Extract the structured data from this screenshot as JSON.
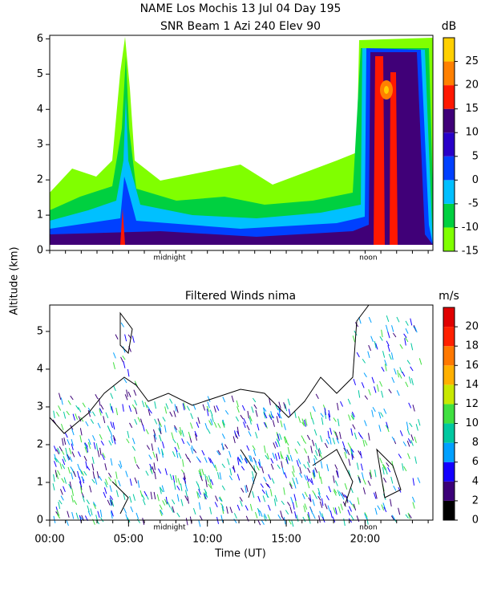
{
  "chart_data": [
    {
      "type": "contour",
      "title": "NAME Los Mochis   13 Jul 04 Day 195",
      "subtitle": "SNR Beam 1 Azi 240 Elev 90",
      "xlim": [
        0,
        24.3
      ],
      "ylim": [
        0,
        6.1
      ],
      "yticks": [
        0,
        1,
        2,
        3,
        4,
        5,
        6
      ],
      "annotations": [
        {
          "text": "midnight",
          "x": 7.6
        },
        {
          "text": "noon",
          "x": 20.2
        }
      ],
      "colorbar": {
        "label": "dB",
        "levels": [
          -15,
          -10,
          -5,
          0,
          5,
          10,
          15,
          20,
          25,
          30
        ],
        "colors": [
          "#80ff00",
          "#00d040",
          "#00c0ff",
          "#0040ff",
          "#2800c8",
          "#400078",
          "#ff1800",
          "#ff8000",
          "#ffd000"
        ],
        "ticks": [
          -15,
          -10,
          -5,
          0,
          5,
          10,
          15,
          20,
          25
        ]
      }
    },
    {
      "type": "barbs",
      "title": "Filtered Winds nima",
      "y_label": "Altitude (km)",
      "x_label": "Time (UT)",
      "xlim": [
        0,
        24.3
      ],
      "ylim": [
        0,
        5.7
      ],
      "yticks": [
        0,
        1,
        2,
        3,
        4,
        5
      ],
      "xticks": [
        {
          "value": 0,
          "label": "00:00"
        },
        {
          "value": 5,
          "label": "05:00"
        },
        {
          "value": 10,
          "label": "10:00"
        },
        {
          "value": 15,
          "label": "15:00"
        },
        {
          "value": 20,
          "label": "20:00"
        }
      ],
      "annotations": [
        {
          "text": "midnight",
          "x": 7.6
        },
        {
          "text": "noon",
          "x": 20.2
        }
      ],
      "colorbar": {
        "label": "m/s",
        "levels": [
          0,
          2,
          4,
          6,
          8,
          10,
          12,
          14,
          16,
          18,
          20,
          22
        ],
        "colors": [
          "#000000",
          "#3c0078",
          "#1400ff",
          "#00a0ff",
          "#00c8a0",
          "#40e040",
          "#c8e800",
          "#ffb000",
          "#ff7800",
          "#ff2000",
          "#e00000"
        ],
        "ticks": [
          0,
          2,
          4,
          6,
          8,
          10,
          12,
          14,
          16,
          18,
          20
        ]
      }
    }
  ]
}
